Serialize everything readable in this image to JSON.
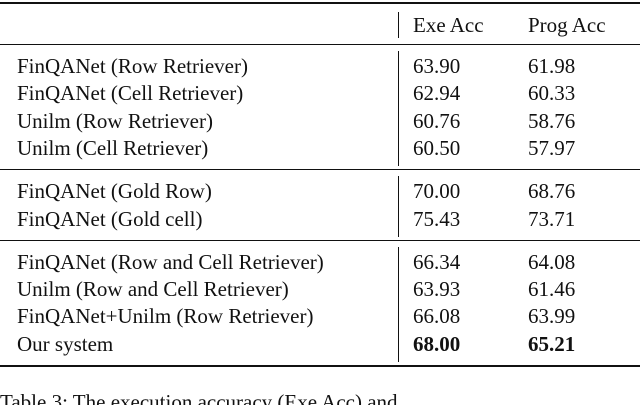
{
  "table": {
    "header": [
      "Exe Acc",
      "Prog Acc"
    ],
    "groups": [
      [
        {
          "label": "FinQANet (Row Retriever)",
          "exe": "63.90",
          "prog": "61.98"
        },
        {
          "label": "FinQANet (Cell Retriever)",
          "exe": "62.94",
          "prog": "60.33"
        },
        {
          "label": "Unilm (Row Retriever)",
          "exe": "60.76",
          "prog": "58.76"
        },
        {
          "label": "Unilm (Cell Retriever)",
          "exe": "60.50",
          "prog": "57.97"
        }
      ],
      [
        {
          "label": "FinQANet (Gold Row)",
          "exe": "70.00",
          "prog": "68.76"
        },
        {
          "label": "FinQANet (Gold cell)",
          "exe": "75.43",
          "prog": "73.71"
        }
      ],
      [
        {
          "label": "FinQANet (Row and Cell Retriever)",
          "exe": "66.34",
          "prog": "64.08"
        },
        {
          "label": "Unilm (Row and Cell Retriever)",
          "exe": "63.93",
          "prog": "61.46"
        },
        {
          "label": "FinQANet+Unilm (Row Retriever)",
          "exe": "66.08",
          "prog": "63.99"
        },
        {
          "label": "Our system",
          "exe": "68.00",
          "prog": "65.21",
          "bold": true
        }
      ]
    ]
  },
  "caption": "Table 3: The execution accuracy (Exe Acc) and"
}
